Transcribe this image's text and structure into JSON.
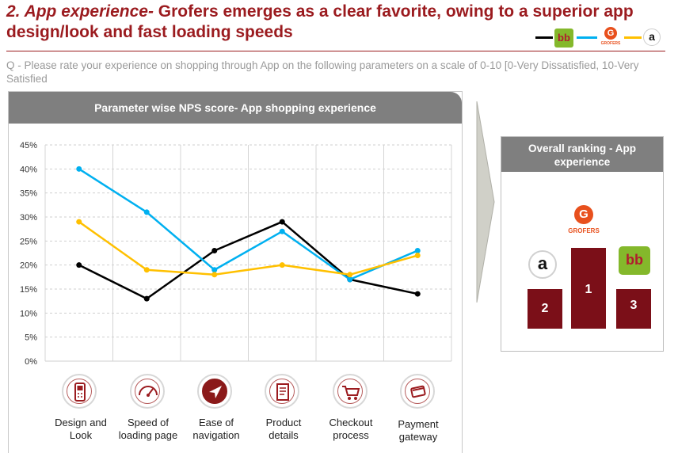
{
  "title": {
    "lead": "2. App experience-",
    "rest": " Grofers emerges as a clear favorite, owing to a superior app design/look and fast loading speeds"
  },
  "brand_legend": [
    {
      "brand": "Big Basket",
      "color": "#000000",
      "logo_text": "bb"
    },
    {
      "brand": "Grofers",
      "color": "#00b0f0",
      "logo_text": "G",
      "logo_caption": "GROFERS"
    },
    {
      "brand": "Amazon",
      "color": "#ffc000",
      "logo_text": "a"
    }
  ],
  "question": "Q - Please rate your experience on shopping through App on the following parameters on a scale of 0-10 [0-Very Dissatisfied, 10-Very Satisfied",
  "chart_data": {
    "type": "line",
    "title": "Parameter wise NPS score- App shopping experience",
    "xlabel": "",
    "ylabel": "",
    "categories": [
      "Design and Look",
      "Speed of loading page",
      "Ease of navigation",
      "Product details",
      "Checkout process",
      "Payment gateway"
    ],
    "ylim": [
      0,
      45
    ],
    "yticks": [
      0,
      5,
      10,
      15,
      20,
      25,
      30,
      35,
      40,
      45
    ],
    "ytick_labels": [
      "0%",
      "5%",
      "10%",
      "15%",
      "20%",
      "25%",
      "30%",
      "35%",
      "40%",
      "45%"
    ],
    "grid": true,
    "legend": "none",
    "series": [
      {
        "color": "#000000",
        "values": [
          20,
          13,
          23,
          29,
          17,
          14
        ]
      },
      {
        "color": "#00b0f0",
        "values": [
          40,
          31,
          19,
          27,
          17,
          23
        ]
      },
      {
        "color": "#ffc000",
        "values": [
          29,
          19,
          18,
          20,
          18,
          22
        ]
      }
    ]
  },
  "category_labels": [
    {
      "line1": "Design and",
      "line2": "Look",
      "icon": "mobile-phone-icon"
    },
    {
      "line1": "Speed of",
      "line2": "loading page",
      "icon": "speedometer-icon"
    },
    {
      "line1": "Ease of",
      "line2": "navigation",
      "icon": "navigation-arrow-icon"
    },
    {
      "line1": "Product",
      "line2": "details",
      "icon": "document-icon"
    },
    {
      "line1": "Checkout",
      "line2": "process",
      "icon": "shopping-cart-icon"
    },
    {
      "line1": "Payment",
      "line2": "gateway",
      "icon": "payment-card-icon"
    }
  ],
  "ranking": {
    "title": "Overall ranking - App experience",
    "places": [
      {
        "rank": "1",
        "brand": "Grofers",
        "logo_text": "G",
        "logo_caption": "GROFERS",
        "color": "#e8501d"
      },
      {
        "rank": "2",
        "brand": "Amazon",
        "logo_text": "a"
      },
      {
        "rank": "3",
        "brand": "Big Basket",
        "logo_text": "bb"
      }
    ]
  },
  "colors": {
    "accent": "#9b1b1f",
    "podium": "#7b0f18",
    "header_gray": "#7f7f7f"
  }
}
